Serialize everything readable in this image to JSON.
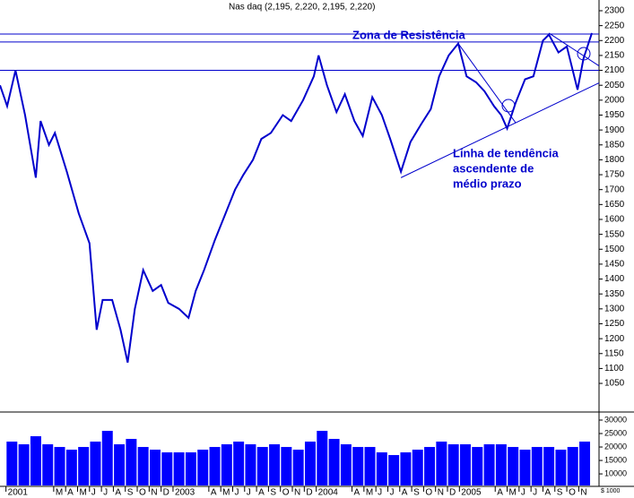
{
  "chart_data": [
    {
      "type": "line",
      "title": "Nas daq (2,195, 2,220, 2,195, 2,220)",
      "x": [
        -2.5,
        -1.9,
        -1.2,
        -0.4,
        0.5,
        0.9,
        1.6,
        2.1,
        3.1,
        4.1,
        5.0,
        5.6,
        6.1,
        6.9,
        7.6,
        8.2,
        8.8,
        9.5,
        10.3,
        11.0,
        11.6,
        12.5,
        13.3,
        13.9,
        14.6,
        15.5,
        16.4,
        17.2,
        17.9,
        18.7,
        19.4,
        20.2,
        21.2,
        21.9,
        22.9,
        23.8,
        24.2,
        24.9,
        25.7,
        26.4,
        27.2,
        27.9,
        28.7,
        29.5,
        30.2,
        31.1,
        31.9,
        32.8,
        33.6,
        34.3,
        35.1,
        35.9,
        36.6,
        37.4,
        38.1,
        38.9,
        39.5,
        40.0,
        40.7,
        41.5,
        42.2,
        43.0,
        43.5,
        44.3,
        45.0,
        45.9,
        46.4,
        47.1
      ],
      "values": [
        2050,
        1980,
        2100,
        1950,
        1740,
        1930,
        1850,
        1890,
        1760,
        1620,
        1520,
        1230,
        1330,
        1330,
        1230,
        1120,
        1300,
        1430,
        1360,
        1380,
        1320,
        1300,
        1270,
        1360,
        1430,
        1530,
        1620,
        1700,
        1750,
        1800,
        1870,
        1890,
        1950,
        1930,
        2000,
        2080,
        2150,
        2050,
        1960,
        2020,
        1930,
        1880,
        2010,
        1950,
        1870,
        1760,
        1860,
        1920,
        1970,
        2080,
        2150,
        2190,
        2080,
        2060,
        2030,
        1980,
        1950,
        1905,
        1990,
        2070,
        2080,
        2200,
        2220,
        2160,
        2180,
        2035,
        2140,
        2225
      ],
      "color": "#0000cc",
      "xlim": [
        -2.5,
        47.7
      ],
      "ylim": [
        960,
        2336
      ],
      "yticks": [
        1050,
        1100,
        1150,
        1200,
        1250,
        1300,
        1350,
        1400,
        1450,
        1500,
        1550,
        1600,
        1650,
        1700,
        1750,
        1800,
        1850,
        1900,
        1950,
        2000,
        2050,
        2100,
        2150,
        2200,
        2250,
        2300
      ],
      "hlines": [
        2222,
        2195,
        2100
      ],
      "trendlines": [
        [
          [
            31.1,
            1740
          ],
          [
            47.7,
            2058
          ]
        ],
        [
          [
            35.9,
            2190
          ],
          [
            40.7,
            1925
          ]
        ],
        [
          [
            43.5,
            2225
          ],
          [
            47.7,
            2115
          ]
        ]
      ],
      "annotations": [
        "Zona de Resistência",
        "Linha de tendência",
        "ascendente de",
        "médio prazo"
      ]
    },
    {
      "type": "bar",
      "x": [
        -1.5,
        -0.5,
        0.5,
        1.5,
        2.5,
        3.5,
        4.5,
        5.5,
        6.5,
        7.5,
        8.5,
        9.5,
        10.5,
        11.5,
        12.5,
        13.5,
        14.5,
        15.5,
        16.5,
        17.5,
        18.5,
        19.5,
        20.5,
        21.5,
        22.5,
        23.5,
        24.5,
        25.5,
        26.5,
        27.5,
        28.5,
        29.5,
        30.5,
        31.5,
        32.5,
        33.5,
        34.5,
        35.5,
        36.5,
        37.5,
        38.5,
        39.5,
        40.5,
        41.5,
        42.5,
        43.5,
        44.5,
        45.5,
        46.5
      ],
      "values": [
        22000,
        21000,
        24000,
        21000,
        20000,
        19000,
        20000,
        22000,
        26000,
        21000,
        23000,
        20000,
        19000,
        18000,
        18000,
        18000,
        19000,
        20000,
        21000,
        22000,
        21000,
        20000,
        21000,
        20000,
        19000,
        22000,
        26000,
        23000,
        21000,
        20000,
        20000,
        18000,
        17000,
        18000,
        19000,
        20000,
        22000,
        21000,
        21000,
        20000,
        21000,
        21000,
        20000,
        19000,
        20000,
        20000,
        19000,
        20000,
        22000
      ],
      "color": "#0000ff",
      "xlim": [
        -2.5,
        47.7
      ],
      "ylim": [
        5700,
        32000
      ],
      "yticks": [
        10000,
        15000,
        20000,
        25000,
        30000
      ],
      "unit_label": "$ 1000",
      "xticks": [
        {
          "value": -2,
          "label": "2001"
        },
        {
          "value": 2,
          "label": "M"
        },
        {
          "value": 3,
          "label": "A"
        },
        {
          "value": 4,
          "label": "M"
        },
        {
          "value": 5,
          "label": "J"
        },
        {
          "value": 6,
          "label": "J"
        },
        {
          "value": 7,
          "label": "A"
        },
        {
          "value": 8,
          "label": "S"
        },
        {
          "value": 9,
          "label": "O"
        },
        {
          "value": 10,
          "label": "N"
        },
        {
          "value": 11,
          "label": "D"
        },
        {
          "value": 12,
          "label": "2003"
        },
        {
          "value": 15,
          "label": "A"
        },
        {
          "value": 16,
          "label": "M"
        },
        {
          "value": 17,
          "label": "J"
        },
        {
          "value": 18,
          "label": "J"
        },
        {
          "value": 19,
          "label": "A"
        },
        {
          "value": 20,
          "label": "S"
        },
        {
          "value": 21,
          "label": "O"
        },
        {
          "value": 22,
          "label": "N"
        },
        {
          "value": 23,
          "label": "D"
        },
        {
          "value": 24,
          "label": "2004"
        },
        {
          "value": 27,
          "label": "A"
        },
        {
          "value": 28,
          "label": "M"
        },
        {
          "value": 29,
          "label": "J"
        },
        {
          "value": 30,
          "label": "J"
        },
        {
          "value": 31,
          "label": "A"
        },
        {
          "value": 32,
          "label": "S"
        },
        {
          "value": 33,
          "label": "O"
        },
        {
          "value": 34,
          "label": "N"
        },
        {
          "value": 35,
          "label": "D"
        },
        {
          "value": 36,
          "label": "2005"
        },
        {
          "value": 39,
          "label": "A"
        },
        {
          "value": 40,
          "label": "M"
        },
        {
          "value": 41,
          "label": "J"
        },
        {
          "value": 42,
          "label": "J"
        },
        {
          "value": 43,
          "label": "A"
        },
        {
          "value": 44,
          "label": "S"
        },
        {
          "value": 45,
          "label": "O"
        },
        {
          "value": 46,
          "label": "N"
        }
      ]
    }
  ]
}
